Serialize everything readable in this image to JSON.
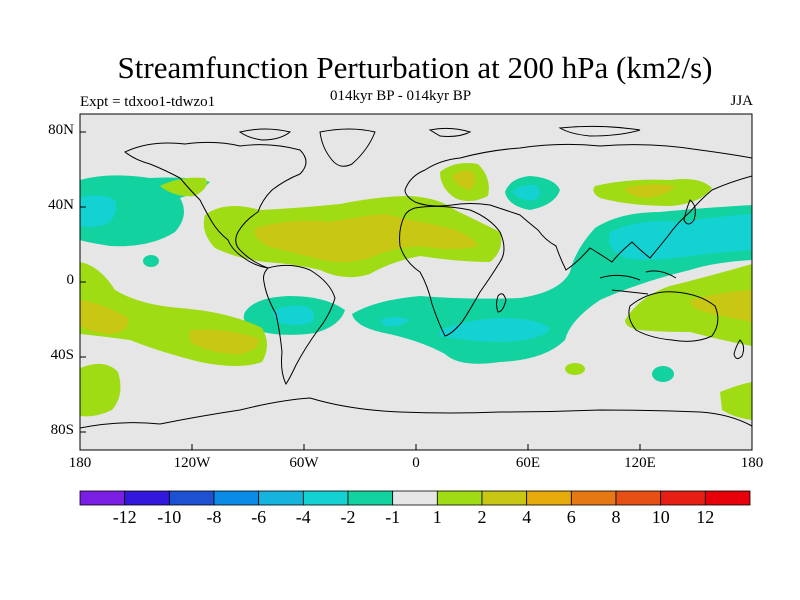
{
  "title": "Streamfunction Perturbation at 200 hPa (km2/s)",
  "subtitle": "014kyr BP - 014kyr BP",
  "left_label": "Expt = tdxoo1-tdwzo1",
  "right_label": "JJA",
  "lat_labels": [
    "80N",
    "40N",
    "0",
    "40S",
    "80S"
  ],
  "lon_labels": [
    "180",
    "120W",
    "60W",
    "0",
    "60E",
    "120E",
    "180"
  ],
  "colorbar": {
    "labels": [
      "-12",
      "-10",
      "-8",
      "-6",
      "-4",
      "-2",
      "-1",
      "1",
      "2",
      "4",
      "6",
      "8",
      "10",
      "12"
    ],
    "colors": [
      "#7a1ee3",
      "#3218dc",
      "#1e50d2",
      "#0a8ce6",
      "#14b4dc",
      "#14d2d2",
      "#12d2a0",
      "#e6e6e6",
      "#a0dc14",
      "#c8c814",
      "#e6aa0a",
      "#e67814",
      "#e65014",
      "#e61e14",
      "#e6000a"
    ]
  },
  "colors": {
    "land_outline": "#000000",
    "neutral": "#e6e6e6"
  }
}
